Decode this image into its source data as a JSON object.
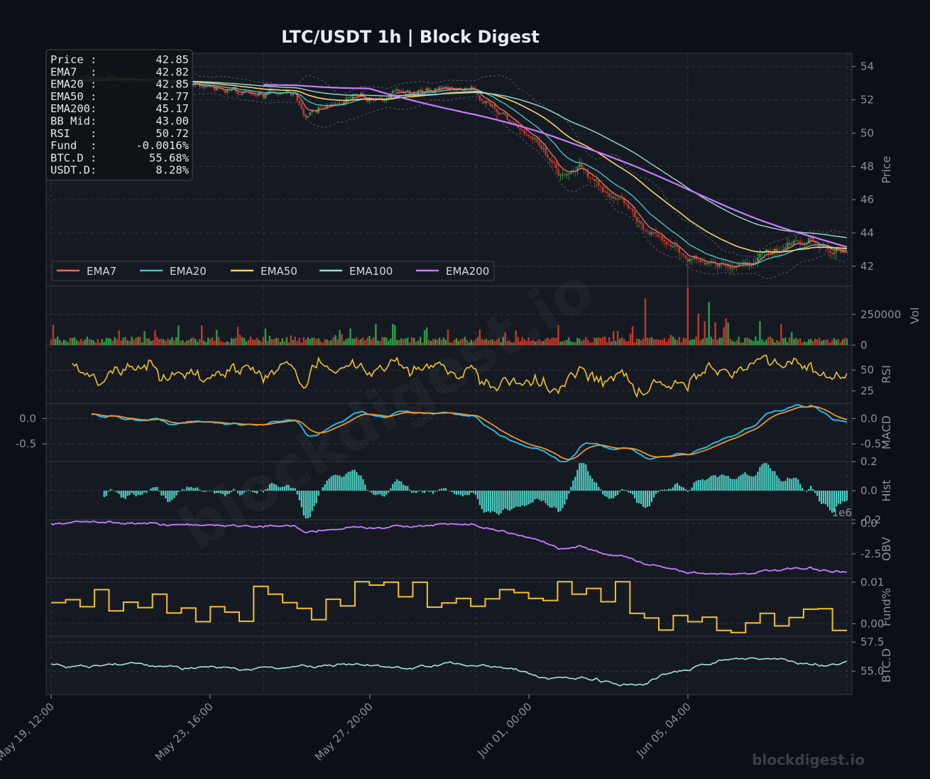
{
  "title": "LTC/USDT  1h  |  Block Digest",
  "watermark": "blockdigest.io",
  "footer_brand": "blockdigest.io",
  "colors": {
    "bg": "#0c0f16",
    "panel": "#151a22",
    "grid": "#2c323c",
    "up": "#2e9e4a",
    "down": "#c0392b"
  },
  "info_box": [
    {
      "label": "Price :",
      "value": "42.85"
    },
    {
      "label": "EMA7  :",
      "value": "42.82"
    },
    {
      "label": "EMA20 :",
      "value": "42.85"
    },
    {
      "label": "EMA50 :",
      "value": "42.77"
    },
    {
      "label": "EMA200:",
      "value": "45.17"
    },
    {
      "label": "BB Mid:",
      "value": "43.00"
    },
    {
      "label": "RSI   :",
      "value": "50.72"
    },
    {
      "label": "Fund  :",
      "value": "-0.0016%"
    },
    {
      "label": "BTC.D :",
      "value": "55.68%"
    },
    {
      "label": "USDT.D:",
      "value": "8.28%"
    }
  ],
  "chart_data": {
    "type": "line",
    "x_ticks": [
      "May 19, 12:00",
      "May 23, 16:00",
      "May 27, 20:00",
      "Jun 01, 00:00",
      "Jun 05, 04:00"
    ],
    "panels": [
      {
        "id": "price",
        "ylabel": "Price",
        "yticks": [
          "42",
          "44",
          "46",
          "48",
          "50",
          "52",
          "54"
        ],
        "ylim": [
          40.8,
          54.8
        ],
        "kind": "candlestick",
        "legend": [
          {
            "name": "EMA7",
            "color": "#e86b6b"
          },
          {
            "name": "EMA20",
            "color": "#4fc1bf"
          },
          {
            "name": "EMA50",
            "color": "#f4d46a"
          },
          {
            "name": "EMA100",
            "color": "#9fd8d0"
          },
          {
            "name": "EMA200",
            "color": "#c77dff"
          }
        ],
        "close_anchors": [
          [
            0,
            53.0
          ],
          [
            20,
            53.5
          ],
          [
            40,
            53.2
          ],
          [
            60,
            52.9
          ],
          [
            80,
            52.7
          ],
          [
            100,
            52.4
          ],
          [
            115,
            52.3
          ],
          [
            120,
            51.0
          ],
          [
            130,
            51.8
          ],
          [
            150,
            52.2
          ],
          [
            170,
            52.5
          ],
          [
            190,
            52.6
          ],
          [
            200,
            52.3
          ],
          [
            210,
            51.2
          ],
          [
            220,
            50.6
          ],
          [
            230,
            49.4
          ],
          [
            240,
            47.5
          ],
          [
            250,
            47.9
          ],
          [
            260,
            46.5
          ],
          [
            270,
            45.8
          ],
          [
            280,
            44.3
          ],
          [
            290,
            43.5
          ],
          [
            300,
            42.5
          ],
          [
            310,
            42.2
          ],
          [
            320,
            42.0
          ],
          [
            330,
            42.3
          ],
          [
            340,
            42.8
          ],
          [
            350,
            43.2
          ],
          [
            360,
            43.4
          ],
          [
            370,
            42.9
          ],
          [
            375,
            42.85
          ]
        ],
        "ema200_start_index": 100
      },
      {
        "id": "volume",
        "ylabel": "Vol",
        "yticks": [
          "0",
          "250000"
        ],
        "ylim": [
          0,
          480000
        ]
      },
      {
        "id": "rsi",
        "ylabel": "RSI",
        "yticks": [
          "25",
          "50"
        ],
        "ylim": [
          10,
          80
        ],
        "color": "#f2c12e"
      },
      {
        "id": "macd",
        "ylabel": "MACD",
        "yticks": [
          "-0.5",
          "0.0"
        ],
        "ylim": [
          -0.85,
          0.3
        ],
        "left_ticks": [
          "-0.5",
          "0.0"
        ],
        "macd_color": "#1ec8f0",
        "signal_color": "#f0932b"
      },
      {
        "id": "hist",
        "ylabel": "Hist",
        "yticks": [
          "-0.2",
          "0.0",
          "0.2"
        ],
        "ylim": [
          -0.2,
          0.2
        ],
        "color": "#4fd1c5"
      },
      {
        "id": "obv",
        "ylabel": "OBV",
        "yticks": [
          "-2.5",
          "0.0"
        ],
        "ylim": [
          -4.5,
          0.3
        ],
        "offset_label": "1e6",
        "color": "#c77dff"
      },
      {
        "id": "funding",
        "ylabel": "Fund%",
        "yticks": [
          "0.00",
          "0.01"
        ],
        "ylim": [
          -0.003,
          0.011
        ],
        "color": "#f2c12e"
      },
      {
        "id": "btcd",
        "ylabel": "BTC.D",
        "yticks": [
          "55.0",
          "57.5"
        ],
        "ylim": [
          53.0,
          58.0
        ],
        "color": "#a8e0d8"
      }
    ]
  }
}
